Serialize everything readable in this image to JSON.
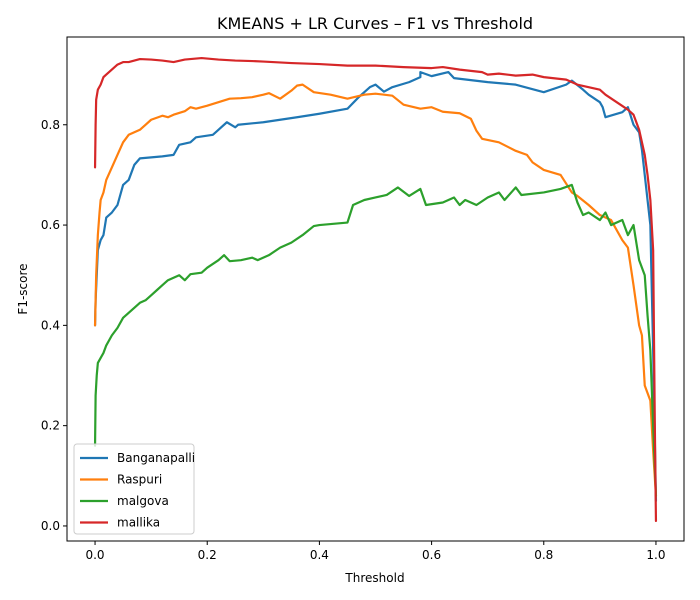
{
  "chart_data": {
    "type": "line",
    "title": "KMEANS + LR Curves – F1 vs Threshold",
    "xlabel": "Threshold",
    "ylabel": "F1-score",
    "xlim": [
      -0.05,
      1.05
    ],
    "ylim": [
      -0.03,
      0.975
    ],
    "xticks": [
      0.0,
      0.2,
      0.4,
      0.6,
      0.8,
      1.0
    ],
    "xtick_labels": [
      "0.0",
      "0.2",
      "0.4",
      "0.6",
      "0.8",
      "1.0"
    ],
    "yticks": [
      0.0,
      0.2,
      0.4,
      0.6,
      0.8
    ],
    "ytick_labels": [
      "0.0",
      "0.2",
      "0.4",
      "0.6",
      "0.8"
    ],
    "grid": false,
    "legend_position": "lower-left",
    "series": [
      {
        "name": "Banganapalli",
        "color": "#1f77b4",
        "points": [
          [
            0,
            0.4
          ],
          [
            0.001,
            0.45
          ],
          [
            0.003,
            0.5
          ],
          [
            0.005,
            0.55
          ],
          [
            0.01,
            0.57
          ],
          [
            0.015,
            0.58
          ],
          [
            0.02,
            0.615
          ],
          [
            0.03,
            0.625
          ],
          [
            0.04,
            0.64
          ],
          [
            0.05,
            0.68
          ],
          [
            0.06,
            0.69
          ],
          [
            0.07,
            0.72
          ],
          [
            0.08,
            0.733
          ],
          [
            0.12,
            0.737
          ],
          [
            0.14,
            0.74
          ],
          [
            0.15,
            0.76
          ],
          [
            0.17,
            0.765
          ],
          [
            0.18,
            0.775
          ],
          [
            0.21,
            0.78
          ],
          [
            0.22,
            0.79
          ],
          [
            0.235,
            0.805
          ],
          [
            0.25,
            0.795
          ],
          [
            0.255,
            0.8
          ],
          [
            0.3,
            0.805
          ],
          [
            0.33,
            0.81
          ],
          [
            0.36,
            0.815
          ],
          [
            0.4,
            0.822
          ],
          [
            0.45,
            0.832
          ],
          [
            0.47,
            0.855
          ],
          [
            0.49,
            0.875
          ],
          [
            0.5,
            0.88
          ],
          [
            0.515,
            0.866
          ],
          [
            0.53,
            0.875
          ],
          [
            0.56,
            0.885
          ],
          [
            0.58,
            0.895
          ],
          [
            0.58,
            0.905
          ],
          [
            0.6,
            0.897
          ],
          [
            0.63,
            0.905
          ],
          [
            0.64,
            0.893
          ],
          [
            0.7,
            0.885
          ],
          [
            0.75,
            0.88
          ],
          [
            0.8,
            0.865
          ],
          [
            0.84,
            0.88
          ],
          [
            0.85,
            0.888
          ],
          [
            0.87,
            0.87
          ],
          [
            0.88,
            0.86
          ],
          [
            0.9,
            0.845
          ],
          [
            0.905,
            0.835
          ],
          [
            0.91,
            0.815
          ],
          [
            0.94,
            0.825
          ],
          [
            0.95,
            0.835
          ],
          [
            0.96,
            0.8
          ],
          [
            0.97,
            0.785
          ],
          [
            0.975,
            0.75
          ],
          [
            0.98,
            0.7
          ],
          [
            0.985,
            0.65
          ],
          [
            0.99,
            0.6
          ],
          [
            0.995,
            0.35
          ],
          [
            1.0,
            0.05
          ]
        ]
      },
      {
        "name": "Raspuri",
        "color": "#ff7f0e",
        "points": [
          [
            0,
            0.4
          ],
          [
            0.002,
            0.5
          ],
          [
            0.005,
            0.58
          ],
          [
            0.008,
            0.625
          ],
          [
            0.01,
            0.65
          ],
          [
            0.015,
            0.665
          ],
          [
            0.02,
            0.69
          ],
          [
            0.03,
            0.715
          ],
          [
            0.04,
            0.74
          ],
          [
            0.05,
            0.765
          ],
          [
            0.06,
            0.78
          ],
          [
            0.07,
            0.785
          ],
          [
            0.08,
            0.79
          ],
          [
            0.09,
            0.8
          ],
          [
            0.1,
            0.81
          ],
          [
            0.12,
            0.818
          ],
          [
            0.13,
            0.815
          ],
          [
            0.14,
            0.82
          ],
          [
            0.16,
            0.827
          ],
          [
            0.17,
            0.835
          ],
          [
            0.18,
            0.832
          ],
          [
            0.2,
            0.838
          ],
          [
            0.22,
            0.845
          ],
          [
            0.24,
            0.852
          ],
          [
            0.26,
            0.853
          ],
          [
            0.28,
            0.855
          ],
          [
            0.3,
            0.86
          ],
          [
            0.31,
            0.863
          ],
          [
            0.33,
            0.852
          ],
          [
            0.35,
            0.868
          ],
          [
            0.36,
            0.878
          ],
          [
            0.37,
            0.88
          ],
          [
            0.39,
            0.865
          ],
          [
            0.42,
            0.86
          ],
          [
            0.45,
            0.852
          ],
          [
            0.48,
            0.86
          ],
          [
            0.5,
            0.862
          ],
          [
            0.53,
            0.858
          ],
          [
            0.55,
            0.84
          ],
          [
            0.58,
            0.832
          ],
          [
            0.6,
            0.835
          ],
          [
            0.62,
            0.826
          ],
          [
            0.65,
            0.823
          ],
          [
            0.67,
            0.812
          ],
          [
            0.68,
            0.788
          ],
          [
            0.69,
            0.772
          ],
          [
            0.72,
            0.765
          ],
          [
            0.75,
            0.748
          ],
          [
            0.77,
            0.74
          ],
          [
            0.78,
            0.725
          ],
          [
            0.8,
            0.71
          ],
          [
            0.83,
            0.7
          ],
          [
            0.85,
            0.665
          ],
          [
            0.86,
            0.658
          ],
          [
            0.88,
            0.64
          ],
          [
            0.9,
            0.62
          ],
          [
            0.92,
            0.61
          ],
          [
            0.94,
            0.57
          ],
          [
            0.95,
            0.555
          ],
          [
            0.96,
            0.48
          ],
          [
            0.97,
            0.4
          ],
          [
            0.975,
            0.38
          ],
          [
            0.98,
            0.28
          ],
          [
            0.99,
            0.25
          ],
          [
            0.995,
            0.15
          ],
          [
            1.0,
            0.06
          ]
        ]
      },
      {
        "name": "malgova",
        "color": "#2ca02c",
        "points": [
          [
            0,
            0.16
          ],
          [
            0.001,
            0.26
          ],
          [
            0.003,
            0.3
          ],
          [
            0.005,
            0.325
          ],
          [
            0.01,
            0.335
          ],
          [
            0.015,
            0.345
          ],
          [
            0.02,
            0.36
          ],
          [
            0.03,
            0.38
          ],
          [
            0.04,
            0.395
          ],
          [
            0.05,
            0.415
          ],
          [
            0.06,
            0.425
          ],
          [
            0.07,
            0.435
          ],
          [
            0.08,
            0.445
          ],
          [
            0.09,
            0.45
          ],
          [
            0.1,
            0.46
          ],
          [
            0.11,
            0.47
          ],
          [
            0.12,
            0.48
          ],
          [
            0.13,
            0.49
          ],
          [
            0.15,
            0.5
          ],
          [
            0.16,
            0.49
          ],
          [
            0.17,
            0.502
          ],
          [
            0.19,
            0.505
          ],
          [
            0.2,
            0.515
          ],
          [
            0.22,
            0.53
          ],
          [
            0.23,
            0.54
          ],
          [
            0.24,
            0.528
          ],
          [
            0.26,
            0.53
          ],
          [
            0.28,
            0.535
          ],
          [
            0.29,
            0.53
          ],
          [
            0.31,
            0.54
          ],
          [
            0.33,
            0.555
          ],
          [
            0.35,
            0.565
          ],
          [
            0.37,
            0.58
          ],
          [
            0.39,
            0.598
          ],
          [
            0.4,
            0.6
          ],
          [
            0.45,
            0.605
          ],
          [
            0.46,
            0.64
          ],
          [
            0.48,
            0.65
          ],
          [
            0.5,
            0.655
          ],
          [
            0.52,
            0.66
          ],
          [
            0.54,
            0.675
          ],
          [
            0.56,
            0.658
          ],
          [
            0.58,
            0.672
          ],
          [
            0.59,
            0.64
          ],
          [
            0.62,
            0.645
          ],
          [
            0.64,
            0.655
          ],
          [
            0.65,
            0.64
          ],
          [
            0.66,
            0.65
          ],
          [
            0.68,
            0.64
          ],
          [
            0.7,
            0.655
          ],
          [
            0.72,
            0.665
          ],
          [
            0.73,
            0.65
          ],
          [
            0.75,
            0.675
          ],
          [
            0.76,
            0.66
          ],
          [
            0.8,
            0.665
          ],
          [
            0.83,
            0.672
          ],
          [
            0.85,
            0.68
          ],
          [
            0.86,
            0.645
          ],
          [
            0.87,
            0.62
          ],
          [
            0.88,
            0.625
          ],
          [
            0.9,
            0.61
          ],
          [
            0.91,
            0.625
          ],
          [
            0.92,
            0.6
          ],
          [
            0.94,
            0.61
          ],
          [
            0.95,
            0.58
          ],
          [
            0.96,
            0.6
          ],
          [
            0.97,
            0.53
          ],
          [
            0.98,
            0.5
          ],
          [
            0.985,
            0.42
          ],
          [
            0.99,
            0.35
          ],
          [
            0.995,
            0.2
          ],
          [
            1.0,
            0.06
          ]
        ]
      },
      {
        "name": "mallika",
        "color": "#d62728",
        "points": [
          [
            0,
            0.715
          ],
          [
            0.001,
            0.8
          ],
          [
            0.002,
            0.85
          ],
          [
            0.005,
            0.87
          ],
          [
            0.01,
            0.88
          ],
          [
            0.015,
            0.895
          ],
          [
            0.02,
            0.9
          ],
          [
            0.03,
            0.91
          ],
          [
            0.04,
            0.92
          ],
          [
            0.05,
            0.925
          ],
          [
            0.06,
            0.925
          ],
          [
            0.07,
            0.928
          ],
          [
            0.08,
            0.931
          ],
          [
            0.1,
            0.93
          ],
          [
            0.12,
            0.928
          ],
          [
            0.14,
            0.925
          ],
          [
            0.16,
            0.93
          ],
          [
            0.19,
            0.933
          ],
          [
            0.22,
            0.93
          ],
          [
            0.25,
            0.928
          ],
          [
            0.28,
            0.927
          ],
          [
            0.3,
            0.926
          ],
          [
            0.35,
            0.923
          ],
          [
            0.4,
            0.921
          ],
          [
            0.45,
            0.918
          ],
          [
            0.5,
            0.918
          ],
          [
            0.55,
            0.915
          ],
          [
            0.6,
            0.913
          ],
          [
            0.62,
            0.915
          ],
          [
            0.65,
            0.91
          ],
          [
            0.69,
            0.905
          ],
          [
            0.7,
            0.9
          ],
          [
            0.72,
            0.902
          ],
          [
            0.75,
            0.898
          ],
          [
            0.78,
            0.9
          ],
          [
            0.8,
            0.895
          ],
          [
            0.84,
            0.89
          ],
          [
            0.86,
            0.88
          ],
          [
            0.88,
            0.875
          ],
          [
            0.9,
            0.87
          ],
          [
            0.91,
            0.86
          ],
          [
            0.93,
            0.845
          ],
          [
            0.95,
            0.83
          ],
          [
            0.96,
            0.82
          ],
          [
            0.97,
            0.79
          ],
          [
            0.98,
            0.74
          ],
          [
            0.985,
            0.7
          ],
          [
            0.99,
            0.65
          ],
          [
            0.995,
            0.55
          ],
          [
            0.998,
            0.2
          ],
          [
            1.0,
            0.01
          ]
        ]
      }
    ]
  }
}
